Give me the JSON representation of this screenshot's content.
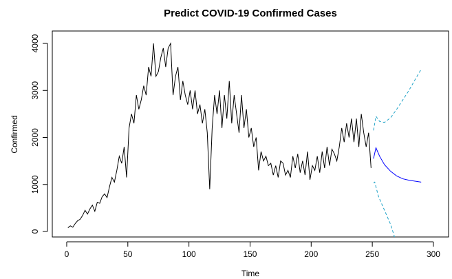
{
  "chart_data": {
    "type": "line",
    "title": "Predict COVID-19 Confirmed Cases",
    "xlabel": "Time",
    "ylabel": "Confirmed",
    "xlim": [
      -11.8,
      312.4
    ],
    "ylim": [
      -117,
      4264
    ],
    "xticks": [
      0,
      50,
      100,
      150,
      200,
      250,
      300
    ],
    "yticks": [
      0,
      1000,
      2000,
      3000,
      4000
    ],
    "series": [
      {
        "color": "#000000",
        "dashed": false,
        "x": [
          1,
          3,
          5,
          7,
          9,
          11,
          13,
          15,
          17,
          19,
          21,
          23,
          25,
          27,
          29,
          31,
          33,
          35,
          37,
          39,
          41,
          43,
          45,
          47,
          49,
          51,
          53,
          55,
          57,
          59,
          61,
          63,
          65,
          67,
          69,
          71,
          73,
          75,
          77,
          79,
          81,
          83,
          85,
          87,
          89,
          91,
          93,
          95,
          97,
          99,
          101,
          103,
          105,
          107,
          109,
          111,
          113,
          115,
          117,
          119,
          121,
          123,
          125,
          127,
          129,
          131,
          133,
          135,
          137,
          139,
          141,
          143,
          145,
          147,
          149,
          151,
          153,
          155,
          157,
          159,
          161,
          163,
          165,
          167,
          169,
          171,
          173,
          175,
          177,
          179,
          181,
          183,
          185,
          187,
          189,
          191,
          193,
          195,
          197,
          199,
          201,
          203,
          205,
          207,
          209,
          211,
          213,
          215,
          217,
          219,
          221,
          223,
          225,
          227,
          229,
          231,
          233,
          235,
          237,
          239,
          241,
          243,
          245,
          247,
          249
        ],
        "values": [
          80,
          120,
          90,
          170,
          230,
          260,
          340,
          450,
          370,
          480,
          560,
          430,
          620,
          600,
          740,
          800,
          720,
          950,
          1150,
          1050,
          1300,
          1600,
          1450,
          1800,
          1150,
          2200,
          2500,
          2300,
          2900,
          2600,
          2800,
          3100,
          2900,
          3500,
          3300,
          4000,
          3300,
          3400,
          3700,
          3900,
          3500,
          3900,
          4000,
          2900,
          3300,
          3500,
          2800,
          3200,
          2900,
          2700,
          3000,
          2600,
          3000,
          2500,
          2700,
          2300,
          2600,
          2100,
          900,
          2200,
          2900,
          2500,
          3000,
          2200,
          2900,
          2400,
          3200,
          2300,
          2900,
          2500,
          2100,
          2900,
          2200,
          2600,
          2000,
          2200,
          1800,
          2000,
          1300,
          1700,
          1500,
          1600,
          1400,
          1450,
          1200,
          1400,
          1150,
          1500,
          1450,
          1200,
          1300,
          1150,
          1600,
          1350,
          1650,
          1250,
          1500,
          1200,
          1700,
          1100,
          1400,
          1300,
          1600,
          1250,
          1700,
          1350,
          1800,
          1400,
          1750,
          1650,
          1500,
          1800,
          2200,
          1900,
          2300,
          2000,
          2400,
          1900,
          2400,
          1800,
          2500,
          2100,
          1800,
          2100,
          1350
        ]
      },
      {
        "color": "#0000ff",
        "dashed": false,
        "x": [
          251,
          253,
          256,
          260,
          265,
          270,
          275,
          280,
          285,
          290
        ],
        "values": [
          1550,
          1780,
          1600,
          1420,
          1280,
          1180,
          1120,
          1090,
          1070,
          1050
        ]
      },
      {
        "color": "#1fa3c8",
        "dashed": true,
        "x": [
          251,
          253,
          256,
          260,
          265,
          270,
          275,
          280,
          285,
          290
        ],
        "values": [
          2150,
          2450,
          2340,
          2320,
          2420,
          2600,
          2800,
          3000,
          3230,
          3450
        ]
      },
      {
        "color": "#1fa3c8",
        "dashed": true,
        "x": [
          251,
          252,
          255,
          260,
          265,
          268,
          270
        ],
        "values": [
          1030,
          1050,
          750,
          450,
          150,
          -100,
          -250
        ]
      }
    ]
  }
}
